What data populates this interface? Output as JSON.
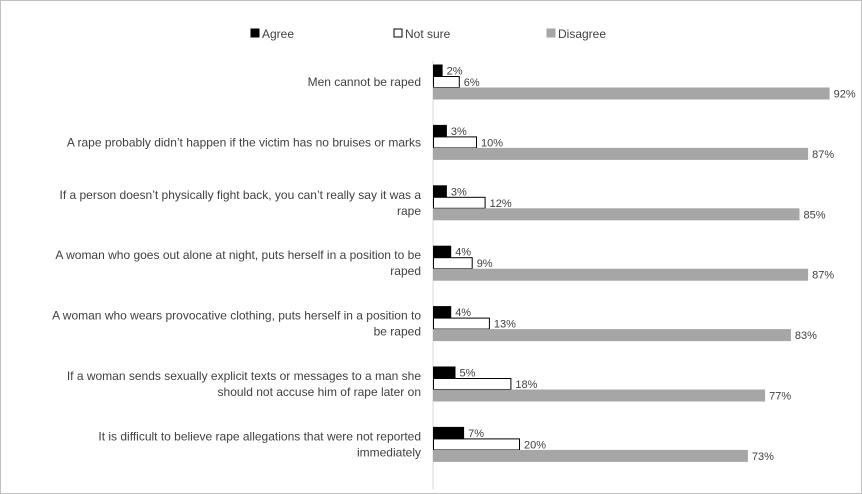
{
  "chart_data": {
    "type": "bar",
    "orientation": "horizontal",
    "title": "",
    "xlabel": "",
    "ylabel": "",
    "xlim": [
      0,
      100
    ],
    "grid": false,
    "legend_position": "top",
    "categories": [
      [
        "Men cannot be raped"
      ],
      [
        "A rape probably didn’t happen if the victim has no bruises or marks"
      ],
      [
        "If a person doesn’t physically fight back, you can’t really say it was a",
        "rape"
      ],
      [
        "A woman who goes out alone at night, puts herself in a position to be",
        "raped"
      ],
      [
        "A woman who wears provocative clothing, puts herself in a position to",
        "be raped"
      ],
      [
        "If a woman sends sexually explicit texts or messages to a man she",
        "should not accuse him of rape later on"
      ],
      [
        "It is difficult to believe rape allegations that were not reported",
        "immediately"
      ]
    ],
    "series": [
      {
        "name": "Agree",
        "color": "#000000",
        "stroke": "#000000",
        "values": [
          2,
          3,
          3,
          4,
          4,
          5,
          7
        ],
        "labels": [
          "2%",
          "3%",
          "3%",
          "4%",
          "4%",
          "5%",
          "7%"
        ]
      },
      {
        "name": "Not sure",
        "color": "#ffffff",
        "stroke": "#000000",
        "values": [
          6,
          10,
          12,
          9,
          13,
          18,
          20
        ],
        "labels": [
          "6%",
          "10%",
          "12%",
          "9%",
          "13%",
          "18%",
          "20%"
        ]
      },
      {
        "name": "Disagree",
        "color": "#a6a6a6",
        "stroke": "#a6a6a6",
        "values": [
          92,
          87,
          85,
          87,
          83,
          77,
          73
        ],
        "labels": [
          "92%",
          "87%",
          "85%",
          "87%",
          "83%",
          "77%",
          "73%"
        ]
      }
    ]
  }
}
